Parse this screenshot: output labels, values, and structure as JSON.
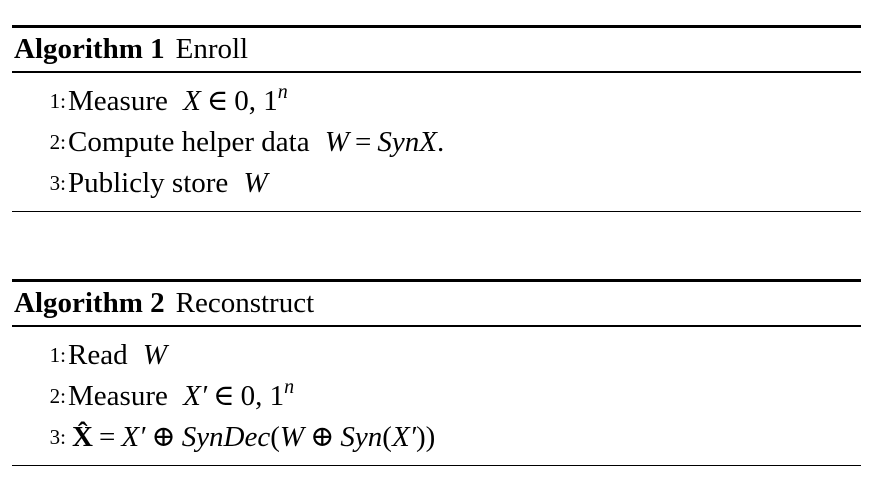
{
  "algorithms": [
    {
      "label": "Algorithm 1",
      "name": "Enroll",
      "steps": [
        {
          "num": "1:",
          "text": "Measure",
          "math": {
            "var": "X",
            "op": "∈",
            "set": "0, 1",
            "sup": "n"
          }
        },
        {
          "num": "2:",
          "text": "Compute helper data",
          "math": {
            "lhs": "W",
            "op": "=",
            "rhs": "SynX",
            "tail": "."
          }
        },
        {
          "num": "3:",
          "text": "Publicly store",
          "math": {
            "var": "W"
          }
        }
      ]
    },
    {
      "label": "Algorithm 2",
      "name": "Reconstruct",
      "steps": [
        {
          "num": "1:",
          "text": "Read",
          "math": {
            "var": "W"
          }
        },
        {
          "num": "2:",
          "text": "Measure",
          "math": {
            "var": "X′",
            "op": "∈",
            "set": "0, 1",
            "sup": "n"
          }
        },
        {
          "num": "3:",
          "text": "",
          "math": {
            "lhs": "X̂",
            "op": "=",
            "a": "X′",
            "oplus1": "⊕",
            "fn": "SynDec",
            "open": "(",
            "b": "W",
            "oplus2": "⊕",
            "syn": "Syn",
            "open2": "(",
            "c": "X′",
            "close": "))"
          }
        }
      ]
    }
  ]
}
